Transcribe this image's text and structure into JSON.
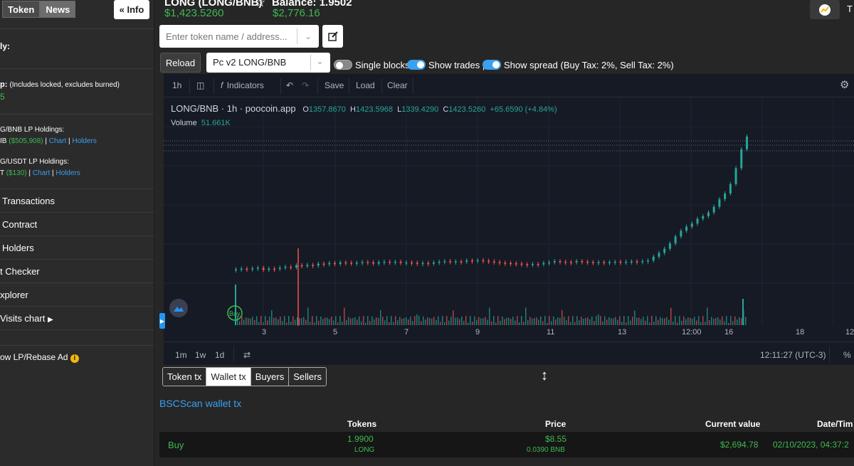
{
  "sidebar": {
    "tabs": [
      "Token",
      "News"
    ],
    "info_button": "« Info",
    "frag_1": "ly:",
    "frag_mcap_label": "p:",
    "frag_mcap_note": "(Includes locked, excludes burned)",
    "frag_mcap_val": "5",
    "lp1_label": "G/BNB LP Holdings:",
    "lp1_amount": "IB",
    "lp1_value": "($505,908)",
    "lp2_label": "G/USDT LP Holdings:",
    "lp2_amount": "T",
    "lp2_value": "($130)",
    "chart_link": "Chart",
    "holders_link": "Holders",
    "items": [
      "Transactions",
      "Contract",
      "Holders",
      "t Checker",
      "xplorer",
      "Visits chart"
    ],
    "ad_item": "ow LP/Rebase Ad"
  },
  "header": {
    "pair_title": "LONG (LONG/BNB)",
    "balance_label": "Balance: 1.9502",
    "price": "$1,423.5260",
    "balance_value": "$2,776.16",
    "right_label": "T"
  },
  "search": {
    "placeholder": "Enter token name / address..."
  },
  "controls": {
    "reload": "Reload",
    "pair_selected": "Pc v2 LONG/BNB",
    "single_blocks": "Single blocks",
    "show_trades": "Show trades |",
    "show_spread": "Show spread (Buy Tax: 2%, Sell Tax: 2%)"
  },
  "chart_toolbar": {
    "interval": "1h",
    "indicators": "Indicators",
    "save": "Save",
    "load": "Load",
    "clear": "Clear"
  },
  "chart_legend": {
    "title": "LONG/BNB · 1h · poocoin.app",
    "o_label": "O",
    "o": "1357.8670",
    "h_label": "H",
    "h": "1423.5968",
    "l_label": "L",
    "l": "1339.4290",
    "c_label": "C",
    "c": "1423.5260",
    "change": "+65.6590 (+4.84%)",
    "volume_label": "Volume",
    "volume": "51.661K",
    "buy_marker": "Buy"
  },
  "chart_bottom": {
    "ranges": [
      "1m",
      "1w",
      "1d"
    ],
    "clock": "12:11:27 (UTC-3)",
    "pct": "%"
  },
  "chart_data": {
    "type": "candlestick",
    "interval": "1h",
    "x_tick_labels": [
      "3",
      "5",
      "7",
      "9",
      "11",
      "13",
      "12:00",
      "16",
      "18",
      "12:"
    ],
    "price_series": [
      [
        0,
        380
      ],
      [
        1,
        382
      ],
      [
        2,
        381
      ],
      [
        3,
        383
      ],
      [
        4,
        385
      ],
      [
        5,
        378
      ],
      [
        6,
        382
      ],
      [
        7,
        381
      ],
      [
        8,
        385
      ],
      [
        9,
        388
      ],
      [
        10,
        386
      ],
      [
        11,
        393
      ],
      [
        12,
        390
      ],
      [
        13,
        394
      ],
      [
        14,
        392
      ],
      [
        15,
        398
      ],
      [
        16,
        396
      ],
      [
        17,
        400
      ],
      [
        18,
        397
      ],
      [
        19,
        402
      ],
      [
        20,
        401
      ],
      [
        21,
        399
      ],
      [
        22,
        401
      ],
      [
        23,
        403
      ],
      [
        24,
        402
      ],
      [
        25,
        398
      ],
      [
        26,
        403
      ],
      [
        27,
        404
      ],
      [
        28,
        401
      ],
      [
        29,
        404
      ],
      [
        30,
        400
      ],
      [
        31,
        402
      ],
      [
        32,
        401
      ],
      [
        33,
        399
      ],
      [
        34,
        400
      ],
      [
        35,
        398
      ],
      [
        36,
        402
      ],
      [
        37,
        404
      ],
      [
        38,
        406
      ],
      [
        39,
        403
      ],
      [
        40,
        405
      ],
      [
        41,
        404
      ],
      [
        42,
        408
      ],
      [
        43,
        406
      ],
      [
        44,
        409
      ],
      [
        45,
        407
      ],
      [
        46,
        405
      ],
      [
        47,
        403
      ],
      [
        48,
        401
      ],
      [
        49,
        400
      ],
      [
        50,
        399
      ],
      [
        51,
        398
      ],
      [
        52,
        396
      ],
      [
        53,
        395
      ],
      [
        54,
        397
      ],
      [
        55,
        396
      ],
      [
        56,
        400
      ],
      [
        57,
        402
      ],
      [
        58,
        406
      ],
      [
        59,
        404
      ],
      [
        60,
        403
      ],
      [
        61,
        402
      ],
      [
        62,
        406
      ],
      [
        63,
        404
      ],
      [
        64,
        403
      ],
      [
        65,
        402
      ],
      [
        66,
        403
      ],
      [
        67,
        401
      ],
      [
        68,
        403
      ],
      [
        69,
        404
      ],
      [
        70,
        403
      ],
      [
        71,
        404
      ],
      [
        72,
        405
      ],
      [
        73,
        404
      ],
      [
        74,
        406
      ],
      [
        75,
        408
      ],
      [
        76,
        420
      ],
      [
        77,
        432
      ],
      [
        78,
        445
      ],
      [
        79,
        462
      ],
      [
        80,
        484
      ],
      [
        81,
        502
      ],
      [
        82,
        515
      ],
      [
        83,
        525
      ],
      [
        84,
        540
      ],
      [
        85,
        548
      ],
      [
        86,
        560
      ],
      [
        87,
        578
      ],
      [
        88,
        602
      ],
      [
        89,
        620
      ],
      [
        90,
        650
      ],
      [
        91,
        700
      ],
      [
        92,
        760
      ],
      [
        93,
        800
      ]
    ]
  }
}
